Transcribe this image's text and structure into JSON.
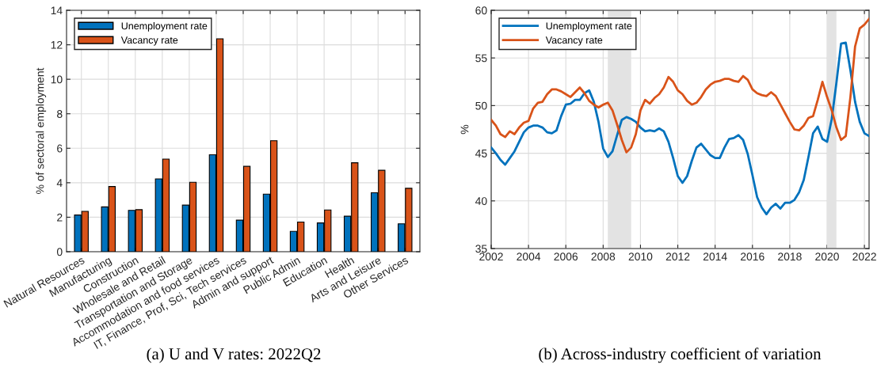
{
  "chart_data": [
    {
      "type": "bar",
      "ylabel": "% of sectoral employment",
      "categories": [
        "Natural Resources",
        "Manufacturing",
        "Construction",
        "Wholesale and Retail",
        "Transportation and Storage",
        "Accommodation and food services",
        "IT, Finance, Prof, Sci, Tech services",
        "Admin and support",
        "Public Admin",
        "Education",
        "Health",
        "Arts and Leisure",
        "Other Services"
      ],
      "series": [
        {
          "name": "Unemployment rate",
          "color": "#0072bd",
          "values": [
            2.13,
            2.6,
            2.4,
            4.22,
            2.7,
            5.62,
            1.83,
            3.34,
            1.18,
            1.67,
            2.06,
            3.42,
            1.62
          ]
        },
        {
          "name": "Vacancy rate",
          "color": "#d95319",
          "values": [
            2.34,
            3.78,
            2.44,
            5.37,
            4.03,
            12.35,
            4.95,
            6.44,
            1.72,
            2.42,
            5.16,
            4.72,
            3.68
          ]
        }
      ],
      "ylim": [
        0,
        14
      ],
      "yticks": [
        0,
        2,
        4,
        6,
        8,
        10,
        12,
        14
      ],
      "grid": true,
      "legend": "top left",
      "annotations": [
        "(a) U and V rates: 2022Q2"
      ]
    },
    {
      "type": "line",
      "ylabel": "%",
      "x": [
        2002,
        2002.25,
        2002.5,
        2002.75,
        2003,
        2003.25,
        2003.5,
        2003.75,
        2004,
        2004.25,
        2004.5,
        2004.75,
        2005,
        2005.25,
        2005.5,
        2005.75,
        2006,
        2006.25,
        2006.5,
        2006.75,
        2007,
        2007.25,
        2007.5,
        2007.75,
        2008,
        2008.25,
        2008.5,
        2008.75,
        2009,
        2009.25,
        2009.5,
        2009.75,
        2010,
        2010.25,
        2010.5,
        2010.75,
        2011,
        2011.25,
        2011.5,
        2011.75,
        2012,
        2012.25,
        2012.5,
        2012.75,
        2013,
        2013.25,
        2013.5,
        2013.75,
        2014,
        2014.25,
        2014.5,
        2014.75,
        2015,
        2015.25,
        2015.5,
        2015.75,
        2016,
        2016.25,
        2016.5,
        2016.75,
        2017,
        2017.25,
        2017.5,
        2017.75,
        2018,
        2018.25,
        2018.5,
        2018.75,
        2019,
        2019.25,
        2019.5,
        2019.75,
        2020,
        2020.25,
        2020.5,
        2020.75,
        2021,
        2021.25,
        2021.5,
        2021.75,
        2022,
        2022.25
      ],
      "series": [
        {
          "name": "Unemployment rate",
          "color": "#0072bd",
          "values": [
            45.6,
            45.0,
            44.3,
            43.8,
            44.5,
            45.2,
            46.2,
            47.2,
            47.7,
            47.9,
            47.9,
            47.7,
            47.2,
            47.1,
            47.4,
            48.9,
            50.1,
            50.2,
            50.6,
            50.6,
            51.3,
            51.6,
            50.4,
            48.3,
            45.5,
            44.6,
            45.2,
            46.9,
            48.5,
            48.8,
            48.6,
            48.3,
            47.7,
            47.3,
            47.4,
            47.3,
            47.6,
            47.3,
            46.2,
            44.5,
            42.6,
            41.9,
            42.6,
            44.2,
            45.6,
            46.0,
            45.4,
            44.8,
            44.5,
            44.5,
            45.6,
            46.5,
            46.6,
            46.9,
            46.4,
            44.9,
            42.7,
            40.4,
            39.3,
            38.6,
            39.3,
            39.7,
            39.2,
            39.8,
            39.8,
            40.1,
            40.9,
            42.2,
            44.6,
            47.1,
            47.8,
            46.5,
            46.2,
            48.6,
            52.4,
            56.5,
            56.6,
            53.7,
            50.4,
            48.3,
            47.1,
            46.8
          ]
        },
        {
          "name": "Vacancy rate",
          "color": "#d95319",
          "values": [
            48.5,
            47.9,
            47.0,
            46.7,
            47.3,
            47.0,
            47.7,
            48.2,
            48.4,
            49.7,
            50.3,
            50.4,
            51.2,
            51.7,
            51.7,
            51.5,
            51.2,
            50.9,
            51.4,
            51.9,
            51.3,
            50.5,
            50.1,
            49.8,
            50.1,
            50.3,
            49.5,
            48.0,
            46.4,
            45.1,
            45.6,
            47.0,
            49.5,
            50.6,
            50.2,
            50.8,
            51.2,
            51.9,
            53.0,
            52.5,
            51.6,
            51.2,
            50.5,
            50.1,
            50.3,
            50.9,
            51.7,
            52.2,
            52.5,
            52.6,
            52.8,
            52.8,
            52.6,
            52.5,
            53.1,
            52.7,
            51.7,
            51.3,
            51.1,
            51.0,
            51.4,
            51.0,
            50.1,
            49.2,
            48.3,
            47.5,
            47.4,
            47.9,
            48.7,
            48.9,
            50.6,
            52.5,
            50.9,
            49.5,
            47.7,
            46.4,
            46.8,
            50.9,
            56.2,
            58.1,
            58.5,
            59.1
          ]
        }
      ],
      "xlim": [
        2002,
        2022.25
      ],
      "xticks": [
        2002,
        2004,
        2006,
        2008,
        2010,
        2012,
        2014,
        2016,
        2018,
        2020,
        2022
      ],
      "ylim": [
        35,
        60
      ],
      "yticks": [
        35,
        40,
        45,
        50,
        55,
        60
      ],
      "grid": true,
      "legend": "top left",
      "line_style": "solid",
      "marker": "none",
      "bands": [
        {
          "axis": "x",
          "from": 2008.25,
          "to": 2009.5,
          "color": "#e3e3e3"
        },
        {
          "axis": "x",
          "from": 2020.0,
          "to": 2020.5,
          "color": "#e3e3e3"
        }
      ],
      "annotations": [
        "(b) Across-industry coefficient of variation"
      ]
    }
  ]
}
